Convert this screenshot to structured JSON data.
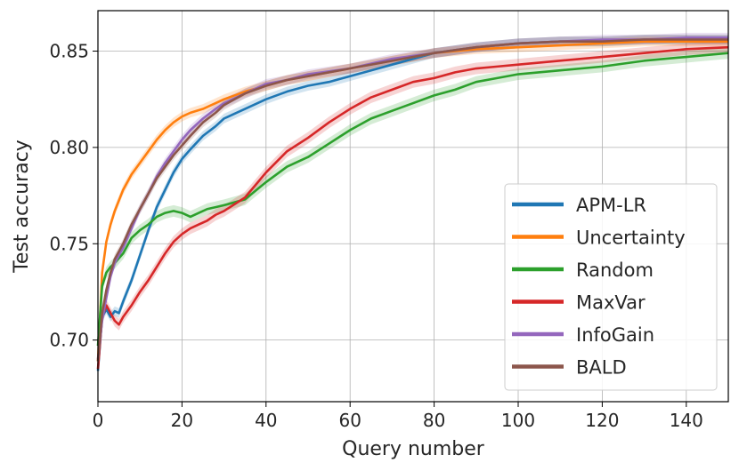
{
  "chart_data": {
    "type": "line",
    "title": "",
    "xlabel": "Query number",
    "ylabel": "Test accuracy",
    "xlim": [
      0,
      150
    ],
    "ylim": [
      0.668,
      0.871
    ],
    "xticks": [
      0,
      20,
      40,
      60,
      80,
      100,
      120,
      140
    ],
    "xtick_labels": [
      "0",
      "20",
      "40",
      "60",
      "80",
      "100",
      "120",
      "140"
    ],
    "yticks": [
      0.7,
      0.75,
      0.8,
      0.85
    ],
    "ytick_labels": [
      "0.70",
      "0.75",
      "0.80",
      "0.85"
    ],
    "grid": true,
    "legend_position": "lower-right",
    "series": [
      {
        "name": "APM-LR",
        "color": "#1f77b4",
        "band": 0.0025,
        "x": [
          0,
          1,
          2,
          3,
          4,
          5,
          6,
          8,
          10,
          12,
          14,
          16,
          18,
          20,
          22,
          25,
          28,
          30,
          35,
          40,
          45,
          50,
          55,
          60,
          65,
          70,
          75,
          80,
          90,
          100,
          110,
          120,
          130,
          140,
          150
        ],
        "values": [
          0.684,
          0.712,
          0.716,
          0.712,
          0.715,
          0.714,
          0.72,
          0.731,
          0.744,
          0.757,
          0.769,
          0.778,
          0.787,
          0.794,
          0.799,
          0.806,
          0.811,
          0.815,
          0.82,
          0.825,
          0.829,
          0.832,
          0.834,
          0.837,
          0.84,
          0.843,
          0.846,
          0.849,
          0.852,
          0.854,
          0.855,
          0.855,
          0.856,
          0.856,
          0.856
        ]
      },
      {
        "name": "Uncertainty",
        "color": "#ff7f0e",
        "band": 0.0025,
        "x": [
          0,
          1,
          2,
          3,
          4,
          6,
          8,
          10,
          12,
          14,
          16,
          18,
          20,
          22,
          25,
          28,
          30,
          35,
          40,
          45,
          50,
          60,
          70,
          80,
          90,
          100,
          110,
          120,
          130,
          140,
          150
        ],
        "values": [
          0.689,
          0.735,
          0.751,
          0.76,
          0.767,
          0.778,
          0.786,
          0.792,
          0.798,
          0.804,
          0.809,
          0.813,
          0.816,
          0.818,
          0.82,
          0.823,
          0.825,
          0.829,
          0.832,
          0.835,
          0.837,
          0.841,
          0.845,
          0.849,
          0.851,
          0.852,
          0.853,
          0.854,
          0.855,
          0.855,
          0.855
        ]
      },
      {
        "name": "Random",
        "color": "#2ca02c",
        "band": 0.003,
        "x": [
          0,
          1,
          2,
          3,
          4,
          6,
          8,
          10,
          12,
          14,
          16,
          18,
          20,
          22,
          24,
          26,
          28,
          30,
          35,
          40,
          45,
          50,
          55,
          60,
          65,
          70,
          75,
          80,
          85,
          90,
          95,
          100,
          110,
          120,
          130,
          140,
          150
        ],
        "values": [
          0.697,
          0.728,
          0.735,
          0.738,
          0.74,
          0.745,
          0.753,
          0.757,
          0.76,
          0.764,
          0.766,
          0.767,
          0.766,
          0.764,
          0.766,
          0.768,
          0.769,
          0.77,
          0.773,
          0.782,
          0.79,
          0.795,
          0.802,
          0.809,
          0.815,
          0.819,
          0.823,
          0.827,
          0.83,
          0.834,
          0.836,
          0.838,
          0.84,
          0.842,
          0.845,
          0.847,
          0.849
        ]
      },
      {
        "name": "MaxVar",
        "color": "#d62728",
        "band": 0.003,
        "x": [
          0,
          1,
          2,
          3,
          4,
          5,
          6,
          8,
          10,
          12,
          14,
          16,
          18,
          20,
          22,
          24,
          26,
          28,
          30,
          35,
          40,
          45,
          50,
          55,
          60,
          65,
          70,
          75,
          80,
          85,
          90,
          95,
          100,
          110,
          120,
          130,
          140,
          150
        ],
        "values": [
          0.685,
          0.712,
          0.718,
          0.714,
          0.71,
          0.708,
          0.712,
          0.718,
          0.725,
          0.731,
          0.738,
          0.745,
          0.751,
          0.755,
          0.758,
          0.76,
          0.762,
          0.765,
          0.767,
          0.774,
          0.787,
          0.798,
          0.805,
          0.813,
          0.82,
          0.826,
          0.83,
          0.834,
          0.836,
          0.839,
          0.841,
          0.842,
          0.843,
          0.845,
          0.847,
          0.849,
          0.851,
          0.852
        ]
      },
      {
        "name": "InfoGain",
        "color": "#9467bd",
        "band": 0.0025,
        "x": [
          0,
          1,
          2,
          3,
          4,
          5,
          6,
          8,
          10,
          12,
          14,
          16,
          18,
          20,
          22,
          25,
          28,
          30,
          35,
          40,
          45,
          50,
          60,
          70,
          80,
          90,
          100,
          110,
          120,
          130,
          140,
          150
        ],
        "values": [
          0.69,
          0.71,
          0.722,
          0.733,
          0.74,
          0.744,
          0.748,
          0.758,
          0.768,
          0.776,
          0.785,
          0.792,
          0.798,
          0.804,
          0.809,
          0.815,
          0.82,
          0.823,
          0.828,
          0.833,
          0.835,
          0.838,
          0.841,
          0.846,
          0.849,
          0.852,
          0.854,
          0.855,
          0.856,
          0.856,
          0.857,
          0.857
        ]
      },
      {
        "name": "BALD",
        "color": "#8c564b",
        "band": 0.0025,
        "x": [
          0,
          1,
          2,
          3,
          4,
          5,
          6,
          8,
          10,
          12,
          14,
          16,
          18,
          20,
          22,
          25,
          28,
          30,
          35,
          40,
          45,
          50,
          60,
          70,
          80,
          90,
          100,
          110,
          120,
          130,
          140,
          150
        ],
        "values": [
          0.689,
          0.714,
          0.726,
          0.735,
          0.742,
          0.746,
          0.75,
          0.76,
          0.768,
          0.776,
          0.784,
          0.79,
          0.796,
          0.801,
          0.806,
          0.813,
          0.818,
          0.822,
          0.828,
          0.832,
          0.835,
          0.837,
          0.841,
          0.845,
          0.849,
          0.852,
          0.854,
          0.855,
          0.855,
          0.856,
          0.856,
          0.856
        ]
      }
    ]
  }
}
